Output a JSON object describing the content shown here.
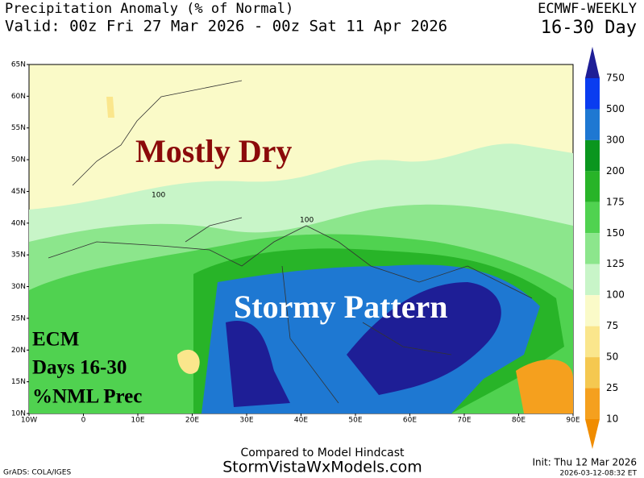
{
  "header": {
    "title": "Precipitation Anomaly (% of Normal)",
    "valid": "Valid: 00z Fri 27 Mar 2026 - 00z Sat 11 Apr 2026",
    "model": "ECMWF-WEEKLY",
    "period": "16-30 Day"
  },
  "map": {
    "lat_labels": [
      "65N",
      "60N",
      "55N",
      "50N",
      "45N",
      "40N",
      "35N",
      "30N",
      "25N",
      "20N",
      "15N",
      "10N"
    ],
    "lon_labels": [
      "10W",
      "0",
      "10E",
      "20E",
      "30E",
      "40E",
      "50E",
      "60E",
      "70E",
      "80E",
      "90E"
    ],
    "annotations": [
      "Mostly Dry",
      "Stormy Pattern"
    ],
    "inset": [
      "ECM",
      "Days 16-30",
      "%NML Prec"
    ],
    "contour_labels": [
      "100",
      "100"
    ]
  },
  "colorbar": {
    "labels": [
      "750",
      "500",
      "300",
      "200",
      "175",
      "150",
      "125",
      "100",
      "75",
      "50",
      "25",
      "10"
    ],
    "colors": [
      "#1e1e96",
      "#0a3cf0",
      "#1e78d2",
      "#0a961e",
      "#28b428",
      "#50d250",
      "#8ce68c",
      "#c8f5c8",
      "#fafac8",
      "#fae68c",
      "#f5c850",
      "#f5a01e",
      "#f08c00"
    ]
  },
  "footer": {
    "compared": "Compared to Model Hindcast",
    "site": "StormVistaWxModels.com",
    "credit": "GrADS: COLA/IGES",
    "init": "Init: Thu 12 Mar 2026",
    "timestamp": "2026-03-12-08:32 ET"
  }
}
